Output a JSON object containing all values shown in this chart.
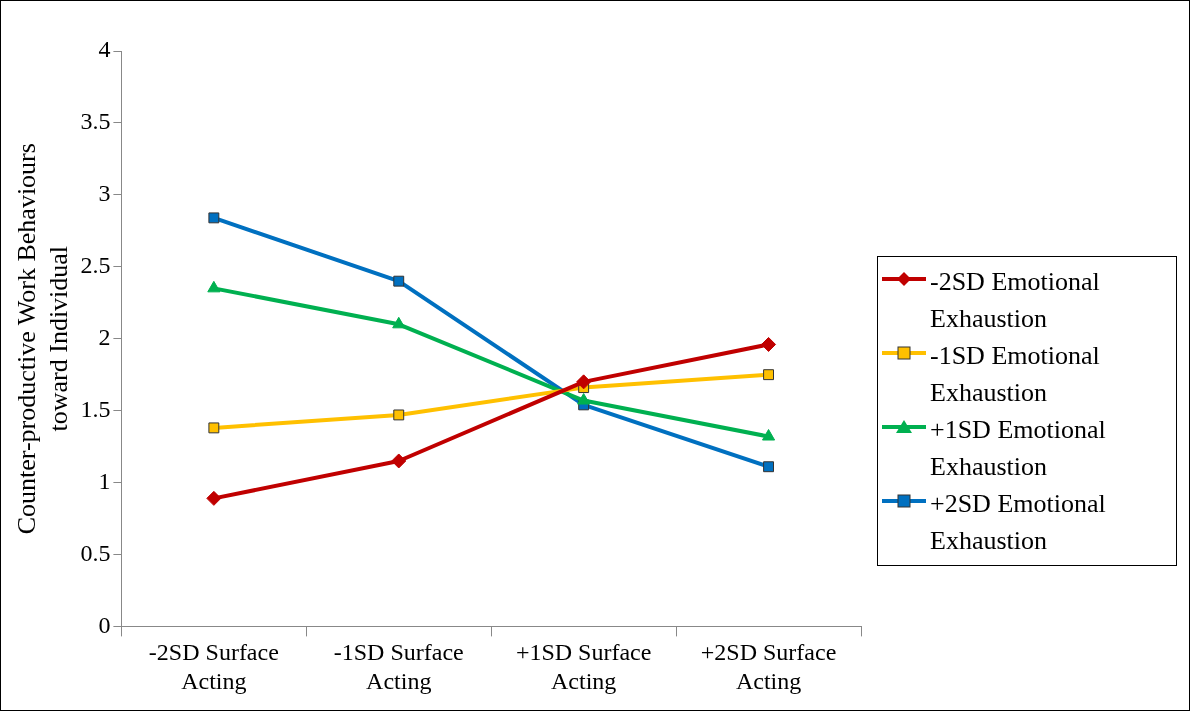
{
  "chart_data": {
    "type": "line",
    "ylabel": "Counter-productive Work Behaviours toward Individual",
    "categories": [
      "-2SD Surface Acting",
      "-1SD Surface Acting",
      "+1SD Surface Acting",
      "+2SD Surface Acting"
    ],
    "series": [
      {
        "name": "-2SD Emotional Exhaustion",
        "color": "#c00000",
        "marker": "diamond",
        "values": [
          0.89,
          1.15,
          1.7,
          1.96
        ]
      },
      {
        "name": "-1SD Emotional Exhaustion",
        "color": "#ffc000",
        "marker": "square",
        "values": [
          1.38,
          1.47,
          1.66,
          1.75
        ]
      },
      {
        "name": "+1SD Emotional Exhaustion",
        "color": "#00b050",
        "marker": "triangle",
        "values": [
          2.35,
          2.1,
          1.57,
          1.32
        ]
      },
      {
        "name": "+2SD Emotional Exhaustion",
        "color": "#0070c0",
        "marker": "square",
        "values": [
          2.84,
          2.4,
          1.54,
          1.11
        ]
      }
    ],
    "ylim": [
      0,
      4
    ],
    "yticks": [
      0,
      0.5,
      1,
      1.5,
      2,
      2.5,
      3,
      3.5,
      4
    ],
    "grid": false,
    "legend": "right"
  }
}
